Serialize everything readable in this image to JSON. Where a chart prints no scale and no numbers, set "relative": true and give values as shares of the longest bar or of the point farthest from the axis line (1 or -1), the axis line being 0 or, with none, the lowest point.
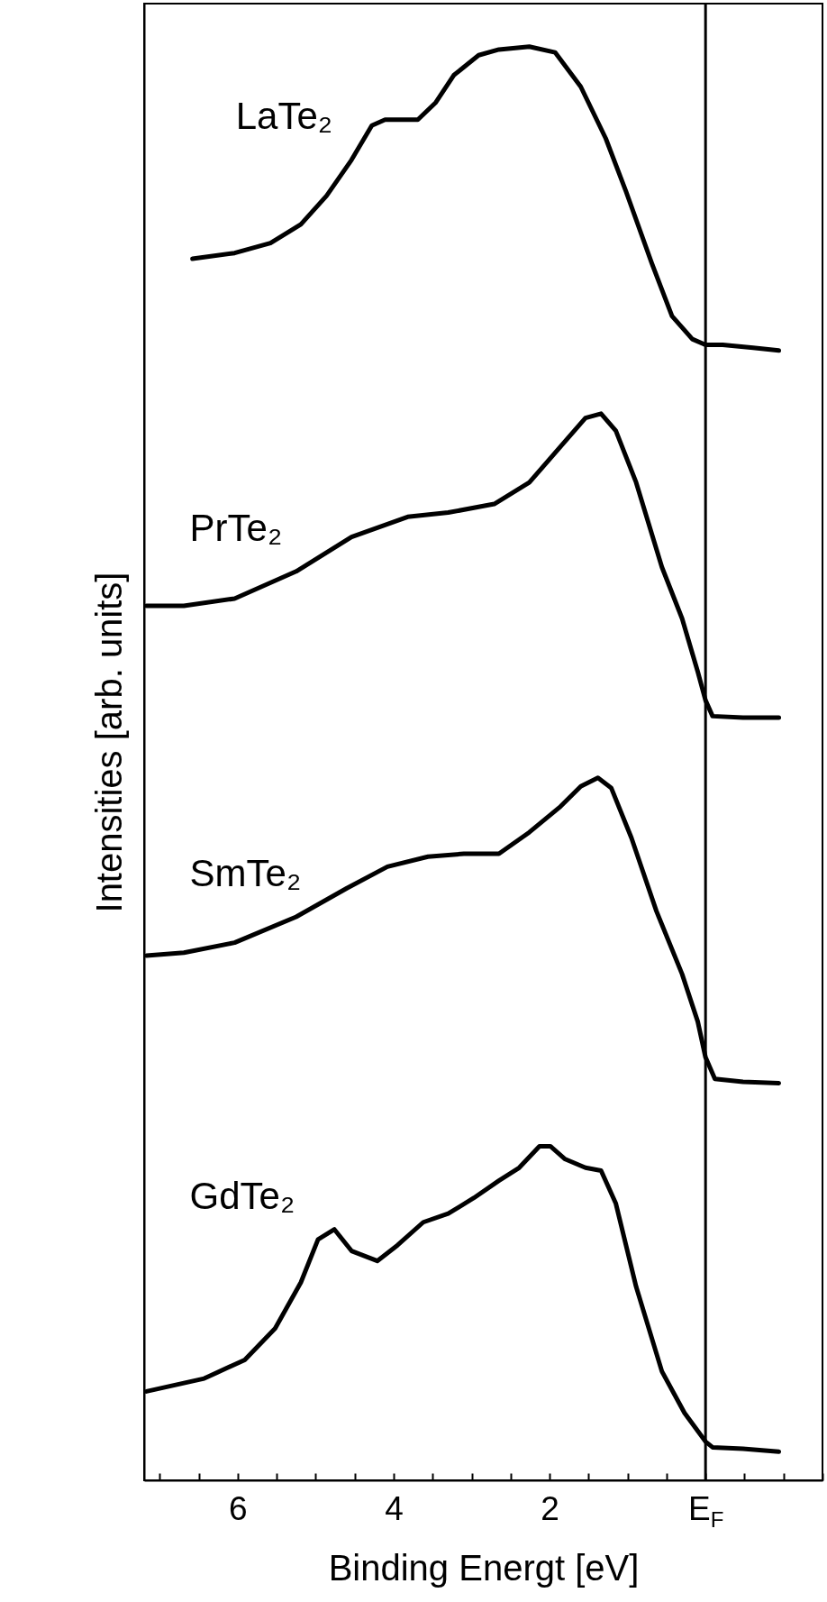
{
  "chart_data": {
    "type": "line",
    "relative": true,
    "xlabel": "Binding Energt [eV]",
    "ylabel": "Intensities [arb. units]",
    "xlim": [
      7.2,
      -1.5
    ],
    "xticks": [
      {
        "value": 7,
        "label": null
      },
      {
        "value": 6.5,
        "label": null
      },
      6,
      {
        "value": 5.5,
        "label": null
      },
      {
        "value": 5,
        "label": null
      },
      {
        "value": 4.5,
        "label": null
      },
      4,
      {
        "value": 3.5,
        "label": null
      },
      {
        "value": 3,
        "label": null
      },
      {
        "value": 2.5,
        "label": null
      },
      2,
      {
        "value": 1.5,
        "label": null
      },
      {
        "value": 1,
        "label": null
      },
      {
        "value": 0.5,
        "label": null
      },
      {
        "value": 0,
        "label": "E$_{F}$"
      },
      {
        "value": -0.5,
        "label": null
      },
      {
        "value": -1,
        "label": null
      },
      {
        "value": -1.5,
        "label": null
      }
    ],
    "grid": false,
    "marker": "none",
    "line_style": "solid",
    "tick_labels": "x",
    "ref_lines": [
      {
        "axis": "x",
        "value": 0,
        "color": "#000000"
      }
    ],
    "series": [
      {
        "name": "LaTe₂",
        "color": "#000000",
        "x": [
          6.58,
          6.04,
          5.58,
          5.19,
          4.86,
          4.54,
          4.28,
          4.11,
          3.69,
          3.46,
          3.23,
          2.91,
          2.65,
          2.26,
          1.93,
          1.6,
          1.28,
          1.02,
          0.69,
          0.43,
          0.17,
          0,
          -0.22,
          -0.61,
          -0.94
        ],
        "values": [
          0.852,
          0.856,
          0.863,
          0.876,
          0.896,
          0.921,
          0.945,
          0.949,
          0.949,
          0.961,
          0.98,
          0.994,
          0.998,
          1.0,
          0.996,
          0.972,
          0.936,
          0.899,
          0.849,
          0.812,
          0.796,
          0.792,
          0.792,
          0.79,
          0.788
        ]
      },
      {
        "name": "PrTe₂",
        "color": "#000000",
        "x": [
          7.17,
          6.69,
          6.04,
          5.25,
          4.54,
          3.82,
          3.3,
          2.71,
          2.26,
          1.86,
          1.54,
          1.34,
          1.15,
          0.89,
          0.56,
          0.3,
          0.1,
          0,
          -0.09,
          -0.48,
          -0.94
        ],
        "values": [
          0.61,
          0.61,
          0.615,
          0.634,
          0.658,
          0.672,
          0.675,
          0.681,
          0.696,
          0.721,
          0.741,
          0.744,
          0.732,
          0.696,
          0.637,
          0.601,
          0.564,
          0.544,
          0.533,
          0.532,
          0.532
        ]
      },
      {
        "name": "SmTe₂",
        "color": "#000000",
        "x": [
          7.17,
          6.69,
          6.04,
          5.25,
          4.6,
          4.08,
          3.56,
          3.1,
          2.65,
          2.26,
          1.86,
          1.6,
          1.38,
          1.21,
          0.95,
          0.63,
          0.3,
          0.1,
          0,
          -0.12,
          -0.48,
          -0.94
        ],
        "values": [
          0.366,
          0.368,
          0.375,
          0.393,
          0.413,
          0.428,
          0.435,
          0.437,
          0.437,
          0.452,
          0.47,
          0.484,
          0.49,
          0.483,
          0.448,
          0.397,
          0.353,
          0.32,
          0.295,
          0.28,
          0.278,
          0.277
        ]
      },
      {
        "name": "GdTe₂",
        "color": "#000000",
        "x": [
          7.17,
          6.43,
          5.91,
          5.52,
          5.19,
          4.97,
          4.76,
          4.54,
          4.21,
          3.95,
          3.62,
          3.3,
          2.97,
          2.65,
          2.39,
          2.13,
          1.99,
          1.8,
          1.54,
          1.34,
          1.15,
          0.89,
          0.56,
          0.27,
          0,
          -0.09,
          -0.48,
          -0.94
        ],
        "values": [
          0.062,
          0.071,
          0.084,
          0.106,
          0.138,
          0.168,
          0.175,
          0.16,
          0.153,
          0.164,
          0.18,
          0.186,
          0.197,
          0.209,
          0.218,
          0.233,
          0.233,
          0.224,
          0.218,
          0.216,
          0.193,
          0.135,
          0.076,
          0.047,
          0.027,
          0.023,
          0.022,
          0.02
        ]
      }
    ]
  }
}
